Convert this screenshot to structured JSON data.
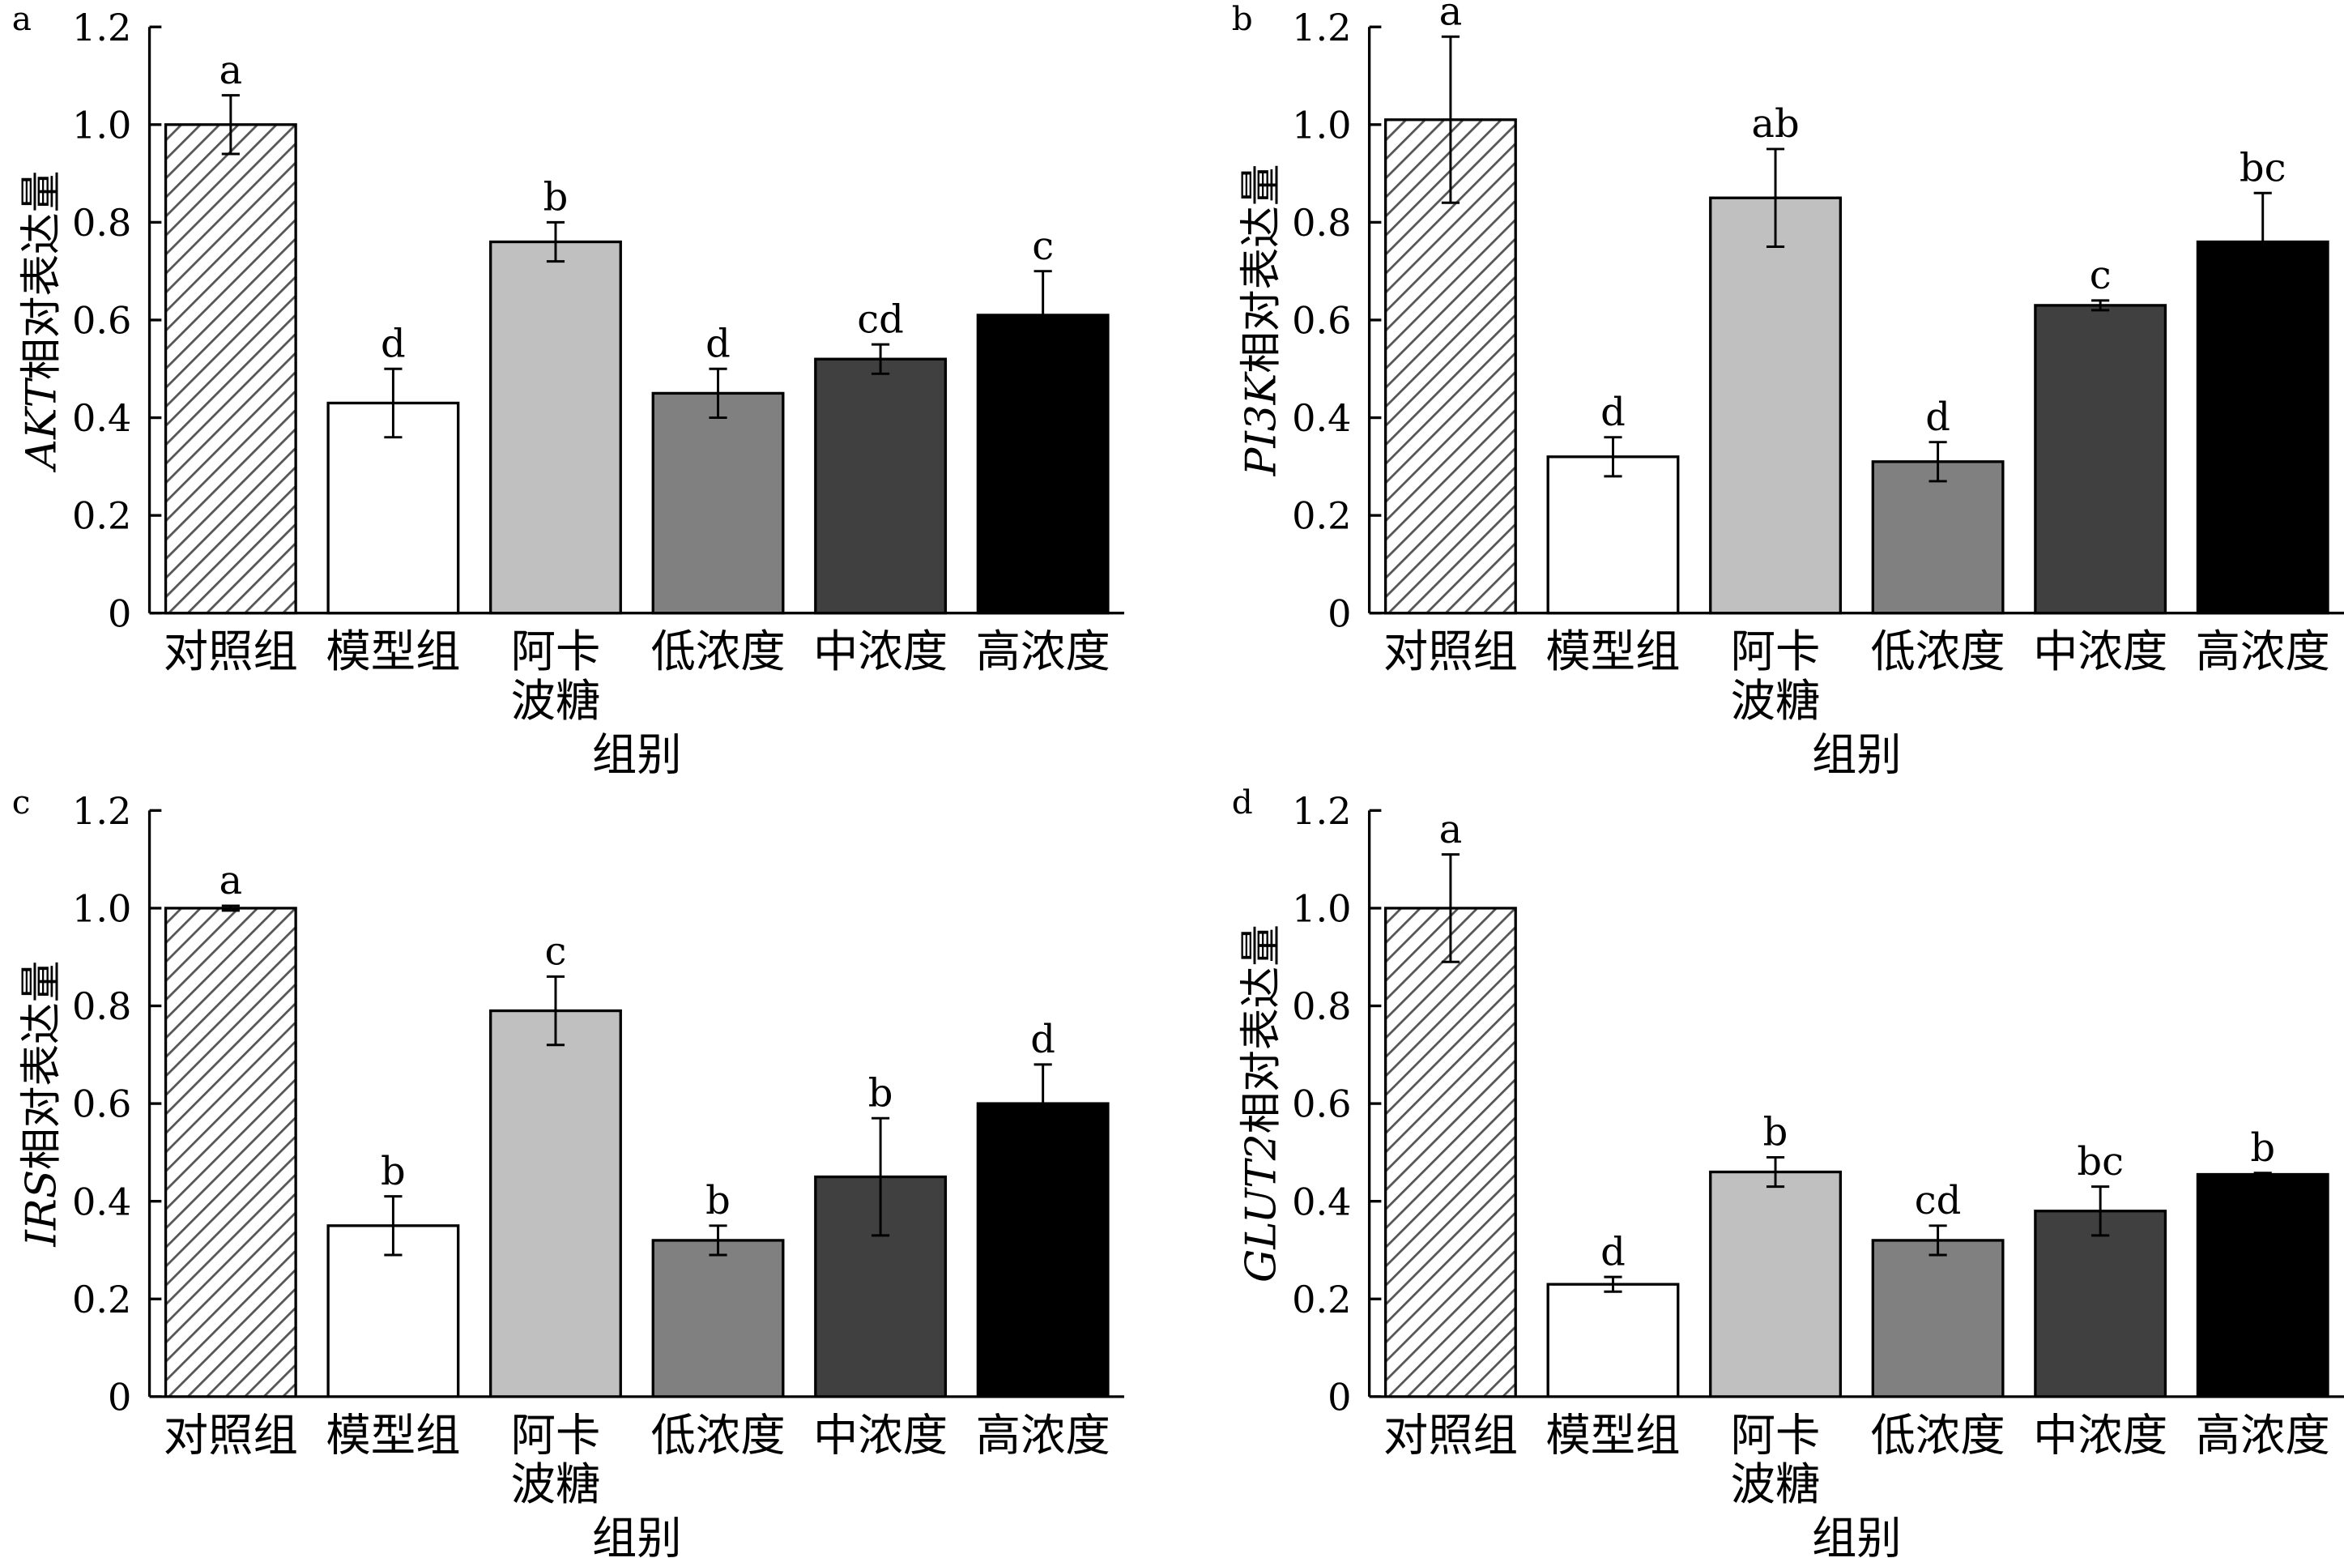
{
  "chart_data": [
    {
      "type": "bar",
      "panel": "a",
      "ylabel_gene": "AKT",
      "ylabel_suffix": "相对表达量",
      "xlabel": "组别",
      "categories": [
        "对照组",
        "模型组",
        "阿卡波糖",
        "低浓度",
        "中浓度",
        "高浓度"
      ],
      "category_lines": [
        [
          "对照组"
        ],
        [
          "模型组"
        ],
        [
          "阿卡",
          "波糖"
        ],
        [
          "低浓度"
        ],
        [
          "中浓度"
        ],
        [
          "高浓度"
        ]
      ],
      "values": [
        1.0,
        0.43,
        0.76,
        0.45,
        0.52,
        0.61
      ],
      "errors": [
        0.06,
        0.07,
        0.04,
        0.05,
        0.03,
        0.09
      ],
      "significance": [
        "a",
        "d",
        "b",
        "d",
        "cd",
        "c"
      ],
      "ylim": [
        0,
        1.2
      ],
      "yticks": [
        "0",
        "0.2",
        "0.4",
        "0.6",
        "0.8",
        "1.0",
        "1.2"
      ]
    },
    {
      "type": "bar",
      "panel": "b",
      "ylabel_gene": "PI3K",
      "ylabel_suffix": "相对表达量",
      "xlabel": "组别",
      "categories": [
        "对照组",
        "模型组",
        "阿卡波糖",
        "低浓度",
        "中浓度",
        "高浓度"
      ],
      "category_lines": [
        [
          "对照组"
        ],
        [
          "模型组"
        ],
        [
          "阿卡",
          "波糖"
        ],
        [
          "低浓度"
        ],
        [
          "中浓度"
        ],
        [
          "高浓度"
        ]
      ],
      "values": [
        1.01,
        0.32,
        0.85,
        0.31,
        0.63,
        0.76
      ],
      "errors": [
        0.17,
        0.04,
        0.1,
        0.04,
        0.01,
        0.1
      ],
      "significance": [
        "a",
        "d",
        "ab",
        "d",
        "c",
        "bc"
      ],
      "ylim": [
        0,
        1.2
      ],
      "yticks": [
        "0",
        "0.2",
        "0.4",
        "0.6",
        "0.8",
        "1.0",
        "1.2"
      ]
    },
    {
      "type": "bar",
      "panel": "c",
      "ylabel_gene": "IRS",
      "ylabel_suffix": "相对表达量",
      "xlabel": "组别",
      "categories": [
        "对照组",
        "模型组",
        "阿卡波糖",
        "低浓度",
        "中浓度",
        "高浓度"
      ],
      "category_lines": [
        [
          "对照组"
        ],
        [
          "模型组"
        ],
        [
          "阿卡",
          "波糖"
        ],
        [
          "低浓度"
        ],
        [
          "中浓度"
        ],
        [
          "高浓度"
        ]
      ],
      "values": [
        1.0,
        0.35,
        0.79,
        0.32,
        0.45,
        0.6
      ],
      "errors": [
        0.005,
        0.06,
        0.07,
        0.03,
        0.12,
        0.08
      ],
      "significance": [
        "a",
        "b",
        "c",
        "b",
        "b",
        "d"
      ],
      "ylim": [
        0,
        1.2
      ],
      "yticks": [
        "0",
        "0.2",
        "0.4",
        "0.6",
        "0.8",
        "1.0",
        "1.2"
      ]
    },
    {
      "type": "bar",
      "panel": "d",
      "ylabel_gene": "GLUT2",
      "ylabel_suffix": "相对表达量",
      "xlabel": "组别",
      "categories": [
        "对照组",
        "模型组",
        "阿卡波糖",
        "低浓度",
        "中浓度",
        "高浓度"
      ],
      "category_lines": [
        [
          "对照组"
        ],
        [
          "模型组"
        ],
        [
          "阿卡",
          "波糖"
        ],
        [
          "低浓度"
        ],
        [
          "中浓度"
        ],
        [
          "高浓度"
        ]
      ],
      "values": [
        1.0,
        0.23,
        0.46,
        0.32,
        0.38,
        0.455
      ],
      "errors": [
        0.11,
        0.015,
        0.03,
        0.03,
        0.05,
        0.003
      ],
      "significance": [
        "a",
        "d",
        "b",
        "cd",
        "bc",
        "b"
      ],
      "ylim": [
        0,
        1.2
      ],
      "yticks": [
        "0",
        "0.2",
        "0.4",
        "0.6",
        "0.8",
        "1.0",
        "1.2"
      ]
    }
  ],
  "bar_fills": [
    "hatch",
    "#ffffff",
    "#c0c0c0",
    "#808080",
    "#404040",
    "#000000"
  ]
}
